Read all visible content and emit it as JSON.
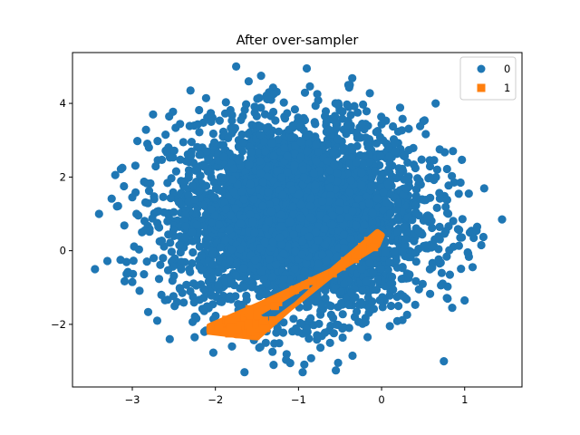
{
  "chart_data": {
    "type": "scatter",
    "title": "After over-sampler",
    "xlabel": "",
    "ylabel": "",
    "xlim": [
      -3.72,
      1.69
    ],
    "ylim": [
      -3.7,
      5.38
    ],
    "xticks": [
      -3,
      -2,
      -1,
      0,
      1
    ],
    "xtick_labels": [
      "−3",
      "−2",
      "−1",
      "0",
      "1"
    ],
    "yticks": [
      -2,
      0,
      2,
      4
    ],
    "ytick_labels": [
      "−2",
      "0",
      "2",
      "4"
    ],
    "grid": false,
    "legend_position": "upper right",
    "series": [
      {
        "name": "0",
        "marker": "circle",
        "color": "#1f77b4",
        "description": "Dense roughly Gaussian cloud of majority-class points",
        "center": [
          -1.0,
          0.9
        ],
        "std": [
          0.75,
          1.3
        ],
        "n_points": 4000,
        "outliers": [
          [
            -3.45,
            -0.5
          ],
          [
            -3.3,
            -0.28
          ],
          [
            -3.4,
            1.0
          ],
          [
            -3.12,
            2.25
          ],
          [
            -3.1,
            1.75
          ],
          [
            -3.0,
            1.45
          ],
          [
            -2.95,
            1.0
          ],
          [
            -2.85,
            0.55
          ],
          [
            -2.8,
            2.8
          ],
          [
            -2.75,
            3.7
          ],
          [
            -2.65,
            -1.2
          ],
          [
            -2.6,
            3.15
          ],
          [
            -2.55,
            -2.4
          ],
          [
            -2.3,
            4.35
          ],
          [
            -2.05,
            3.5
          ],
          [
            -1.75,
            5.0
          ],
          [
            -1.6,
            4.6
          ],
          [
            -1.45,
            4.75
          ],
          [
            -1.3,
            -3.1
          ],
          [
            -1.1,
            -3.05
          ],
          [
            -0.95,
            -3.3
          ],
          [
            -0.9,
            4.95
          ],
          [
            -0.4,
            4.5
          ],
          [
            0.1,
            -2.05
          ],
          [
            0.65,
            4.0
          ],
          [
            0.7,
            2.75
          ],
          [
            0.75,
            -3.0
          ],
          [
            0.95,
            1.85
          ],
          [
            1.05,
            1.55
          ],
          [
            1.2,
            0.15
          ],
          [
            1.45,
            0.85
          ],
          [
            1.15,
            0.65
          ],
          [
            1.0,
            -1.35
          ],
          [
            0.85,
            -1.55
          ],
          [
            -3.0,
            -0.85
          ],
          [
            -2.7,
            -1.9
          ],
          [
            -2.25,
            -2.35
          ],
          [
            -1.8,
            -2.6
          ],
          [
            -1.65,
            -3.3
          ],
          [
            -0.55,
            -3.25
          ],
          [
            -0.35,
            -2.85
          ],
          [
            0.45,
            -1.05
          ]
        ]
      },
      {
        "name": "1",
        "marker": "square",
        "color": "#ff7f0e",
        "description": "Synthetic minority samples forming a thin wedge-shaped band from (-2.05,-2.15) to (0,0.45)",
        "outline": [
          [
            -2.07,
            -2.05
          ],
          [
            -1.45,
            -1.45
          ],
          [
            -0.6,
            -0.55
          ],
          [
            -0.05,
            0.5
          ],
          [
            0.0,
            0.42
          ],
          [
            -0.05,
            0.15
          ],
          [
            -0.55,
            -0.55
          ],
          [
            -1.1,
            -1.55
          ],
          [
            -1.5,
            -2.35
          ],
          [
            -2.07,
            -2.2
          ]
        ],
        "inner_gap": [
          [
            -1.45,
            -1.75
          ],
          [
            -0.9,
            -1.0
          ],
          [
            -0.7,
            -0.68
          ],
          [
            -1.05,
            -1.4
          ],
          [
            -1.35,
            -1.9
          ]
        ]
      }
    ]
  },
  "legend": {
    "items": [
      {
        "label": "0",
        "marker": "circle",
        "color": "#1f77b4"
      },
      {
        "label": "1",
        "marker": "square",
        "color": "#ff7f0e"
      }
    ]
  }
}
